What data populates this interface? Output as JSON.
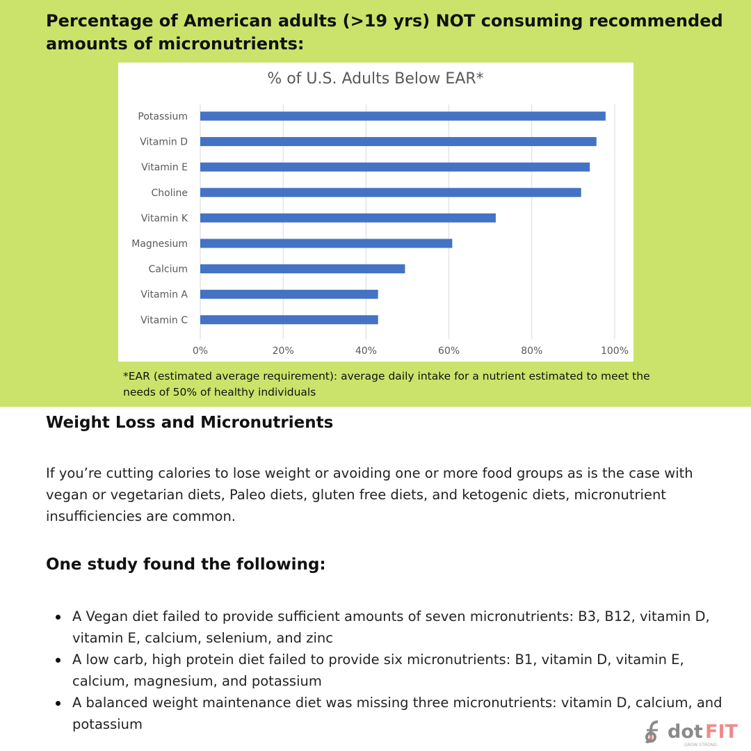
{
  "headline": "Percentage of American adults (>19 yrs) NOT consuming recommended amounts of micronutrients:",
  "chart_data": {
    "type": "bar",
    "orientation": "horizontal",
    "title": "% of U.S. Adults Below EAR*",
    "categories": [
      "Potassium",
      "Vitamin D",
      "Vitamin E",
      "Choline",
      "Vitamin K",
      "Magnesium",
      "Calcium",
      "Vitamin A",
      "Vitamin C"
    ],
    "values": [
      97.8,
      95.6,
      94,
      91.9,
      71.3,
      60.8,
      49.4,
      42.9,
      42.9
    ],
    "xlim": [
      0,
      100
    ],
    "xticks": [
      "0%",
      "20%",
      "40%",
      "60%",
      "80%",
      "100%"
    ],
    "grid": true,
    "bar_color": "#4472c4"
  },
  "note": "*EAR (estimated average requirement): average daily intake for a nutrient estimated to meet the needs of 50% of healthy individuals",
  "section1": {
    "heading": "Weight Loss and Micronutrients",
    "text": "If you’re cutting calories to lose weight or avoiding one or more food groups as is the case with vegan or vegetarian diets, Paleo diets, gluten free diets, and ketogenic diets, micronutrient insufficiencies are common."
  },
  "section2": {
    "heading": "One study found the following:",
    "items": [
      "A Vegan diet failed to provide sufficient amounts of seven micronutrients: B3, B12, vitamin D, vitamin E, calcium, selenium, and zinc",
      "A low carb, high protein diet failed to provide six micronutrients: B1, vitamin D, vitamin E, calcium, magnesium, and potassium",
      "A balanced weight maintenance diet was missing three micronutrients: vitamin D, calcium, and potassium"
    ]
  },
  "logo": {
    "text_dot": "dot",
    "text_fit": "FIT",
    "tagline": "GROW STRONG.",
    "colors": {
      "gray": "#8a8a8a",
      "pink": "#f08a8a"
    }
  }
}
